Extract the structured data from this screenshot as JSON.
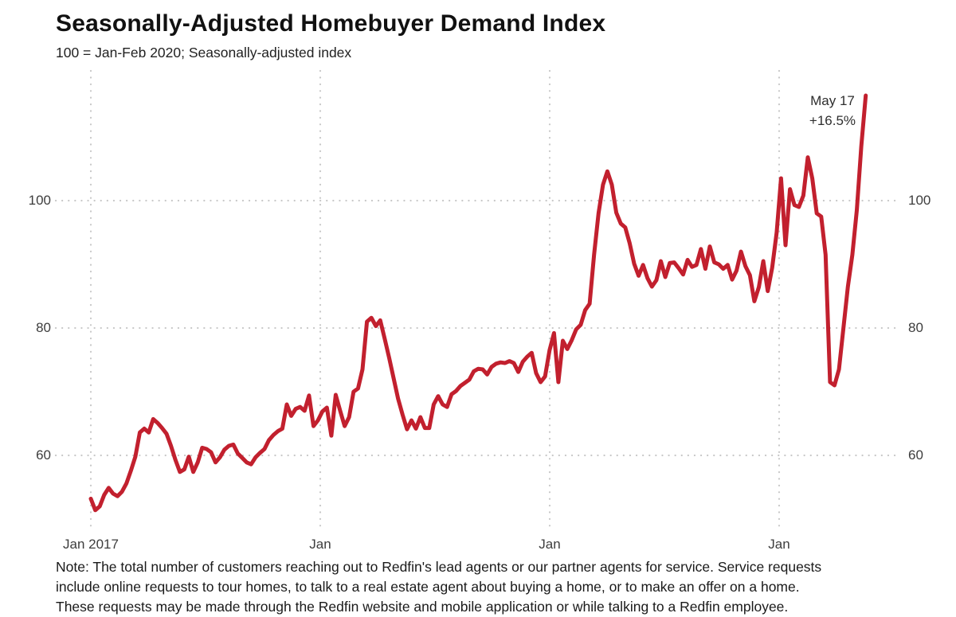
{
  "header": {
    "title": "Seasonally-Adjusted Homebuyer Demand Index",
    "subtitle": "100 = Jan-Feb 2020; Seasonally-adjusted index"
  },
  "chart_data": {
    "type": "line",
    "title": "Seasonally-Adjusted Homebuyer Demand Index",
    "subtitle": "100 = Jan-Feb 2020; Seasonally-adjusted index",
    "line_color": "#c2202e",
    "grid": "dotted",
    "legend_position": "none",
    "ylim": [
      48,
      120
    ],
    "y_ticks": [
      60,
      80,
      100
    ],
    "y_axis_sides": [
      "left",
      "right"
    ],
    "x_tick_labels": [
      "Jan 2017",
      "Jan",
      "Jan",
      "Jan"
    ],
    "x_tick_weeks": [
      0,
      52,
      104,
      156
    ],
    "annotation": {
      "label": "May 17",
      "value": "+16.5%"
    },
    "series": [
      {
        "name": "Seasonally-adjusted homebuyer demand index",
        "frequency": "weekly",
        "start": "Jan 2017",
        "end": "May 17, 2020",
        "values": [
          53.2,
          51.4,
          52.0,
          53.8,
          54.9,
          54.0,
          53.6,
          54.3,
          55.6,
          57.6,
          59.8,
          63.6,
          64.2,
          63.6,
          65.7,
          65.1,
          64.3,
          63.4,
          61.5,
          59.3,
          57.4,
          57.8,
          59.8,
          57.4,
          58.9,
          61.2,
          61.0,
          60.5,
          58.9,
          59.7,
          60.9,
          61.5,
          61.7,
          60.3,
          59.6,
          58.9,
          58.6,
          59.7,
          60.4,
          61.0,
          62.4,
          63.2,
          63.8,
          64.2,
          68.0,
          66.2,
          67.3,
          67.6,
          67.0,
          69.4,
          64.6,
          65.5,
          66.9,
          67.5,
          63.1,
          69.5,
          67.0,
          64.6,
          66.0,
          70.0,
          70.5,
          73.5,
          81.0,
          81.6,
          80.3,
          81.2,
          78.3,
          75.3,
          72.1,
          68.9,
          66.4,
          64.1,
          65.5,
          64.2,
          66.0,
          64.3,
          64.3,
          68.0,
          69.3,
          68.0,
          67.6,
          69.6,
          70.1,
          70.9,
          71.4,
          71.9,
          73.2,
          73.6,
          73.5,
          72.7,
          73.9,
          74.4,
          74.6,
          74.5,
          74.8,
          74.5,
          73.1,
          74.7,
          75.5,
          76.1,
          72.9,
          71.5,
          72.4,
          76.5,
          79.2,
          71.5,
          78.0,
          76.7,
          78.1,
          79.8,
          80.5,
          82.8,
          83.8,
          91.5,
          98.0,
          102.5,
          104.6,
          102.5,
          98.1,
          96.4,
          95.8,
          93.3,
          90.1,
          88.2,
          89.9,
          87.8,
          86.5,
          87.5,
          90.5,
          88.0,
          90.2,
          90.3,
          89.4,
          88.4,
          90.7,
          89.6,
          89.9,
          92.4,
          89.3,
          92.8,
          90.3,
          90.0,
          89.3,
          89.9,
          87.6,
          89.0,
          92.0,
          89.7,
          88.3,
          84.2,
          86.4,
          90.5,
          85.8,
          89.5,
          95.0,
          103.5,
          93.0,
          101.8,
          99.3,
          99.0,
          100.8,
          106.8,
          103.5,
          98.0,
          97.5,
          91.5,
          71.5,
          71.0,
          73.5,
          80.0,
          86.5,
          91.5,
          98.5,
          108.5,
          116.5
        ]
      }
    ]
  },
  "note": {
    "lines": [
      "Note: The total number of customers reaching out to Redfin's lead agents or our partner agents for service. Service requests",
      "include online requests to tour homes, to talk to a real estate agent about buying a home, or to make an offer on a home.",
      "These requests may be made through the Redfin website and mobile application or while talking to a Redfin employee."
    ]
  }
}
